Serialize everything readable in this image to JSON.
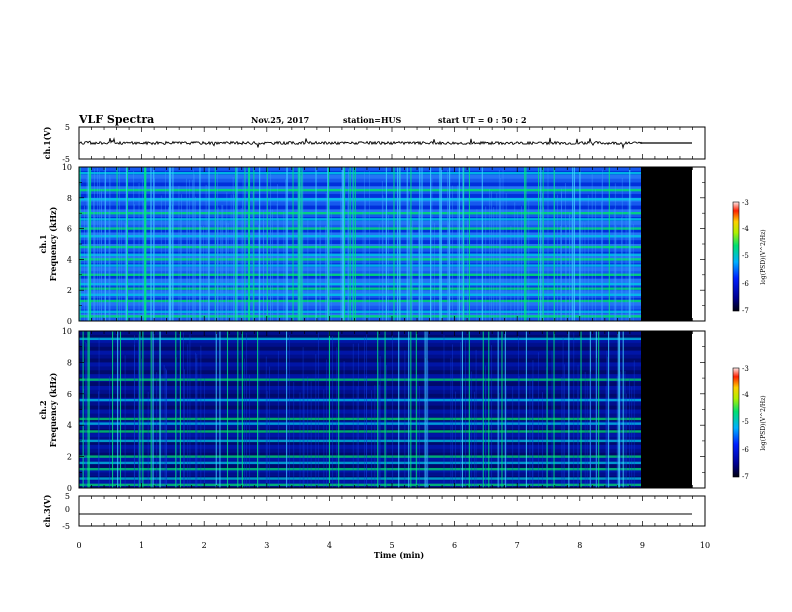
{
  "header": {
    "title": "VLF Spectra",
    "date": "Nov.25, 2017",
    "station": "station=HUS",
    "start": "start  UT =   0 : 50 : 2"
  },
  "chart_data": [
    {
      "type": "line",
      "panel": "ch1-waveform",
      "ylabel": "ch.1(V)",
      "ylim": [
        -5,
        5
      ],
      "yticks": [
        "5",
        "-5"
      ],
      "xlim": [
        0,
        10
      ],
      "series": [
        {
          "values_summary": {
            "baseline": 0.0,
            "data_end_min": 9.0,
            "flat_after_min": 9.0,
            "end_min": 9.8
          }
        }
      ]
    },
    {
      "type": "heatmap",
      "panel": "ch1-spectrogram",
      "ylabel": "ch.1\nFrequency  (kHz)",
      "ylim": [
        0,
        10
      ],
      "yticks": [
        "0",
        "2",
        "4",
        "6",
        "8",
        "10"
      ],
      "xlim": [
        0,
        10
      ],
      "data_end_min": 9.0,
      "end_min": 9.8,
      "bands_khz": [
        0.3,
        0.6,
        1.3,
        1.7,
        2.1,
        2.4,
        3.0,
        3.6,
        4.0,
        4.3,
        4.8,
        5.5,
        6.0,
        6.6,
        7.0,
        7.9,
        8.5,
        9.6
      ],
      "colorbar": {
        "label": "log(PSD)(V^2/Hz)",
        "range": [
          -7,
          -3
        ],
        "ticks": [
          "-3",
          "-4",
          "-5",
          "-6",
          "-7"
        ]
      }
    },
    {
      "type": "heatmap",
      "panel": "ch2-spectrogram",
      "ylabel": "ch.2\nFrequency  (kHz)",
      "ylim": [
        0,
        10
      ],
      "yticks": [
        "0",
        "2",
        "4",
        "6",
        "8",
        "10"
      ],
      "xlim": [
        0,
        10
      ],
      "data_end_min": 9.0,
      "end_min": 9.8,
      "bands_khz": [
        0.2,
        0.6,
        1.2,
        1.6,
        2.0,
        3.0,
        3.6,
        4.1,
        4.4,
        5.6,
        6.9,
        9.5
      ],
      "colorbar": {
        "label": "log(PSD)(V^2/Hz)",
        "range": [
          -7,
          -3
        ],
        "ticks": [
          "-3",
          "-4",
          "-5",
          "-6",
          "-7"
        ]
      }
    },
    {
      "type": "line",
      "panel": "ch3-waveform",
      "ylabel": "ch.3(V)",
      "ylim": [
        -5,
        5
      ],
      "yticks": [
        "5",
        "0",
        "-5"
      ],
      "xlim": [
        0,
        10
      ],
      "series": [
        {
          "values_summary": {
            "constant": -1.5,
            "end_min": 9.8
          }
        }
      ]
    }
  ],
  "xaxis": {
    "label": "Time  (min)",
    "ticks": [
      "0",
      "1",
      "2",
      "3",
      "4",
      "5",
      "6",
      "7",
      "8",
      "9",
      "10"
    ]
  },
  "colors": {
    "bg": "#ffffff",
    "ink": "#000000",
    "deep": "#000088",
    "blue": "#0010e0",
    "cyan": "#00c8e0",
    "green": "#00e060",
    "noData": "#000000"
  }
}
